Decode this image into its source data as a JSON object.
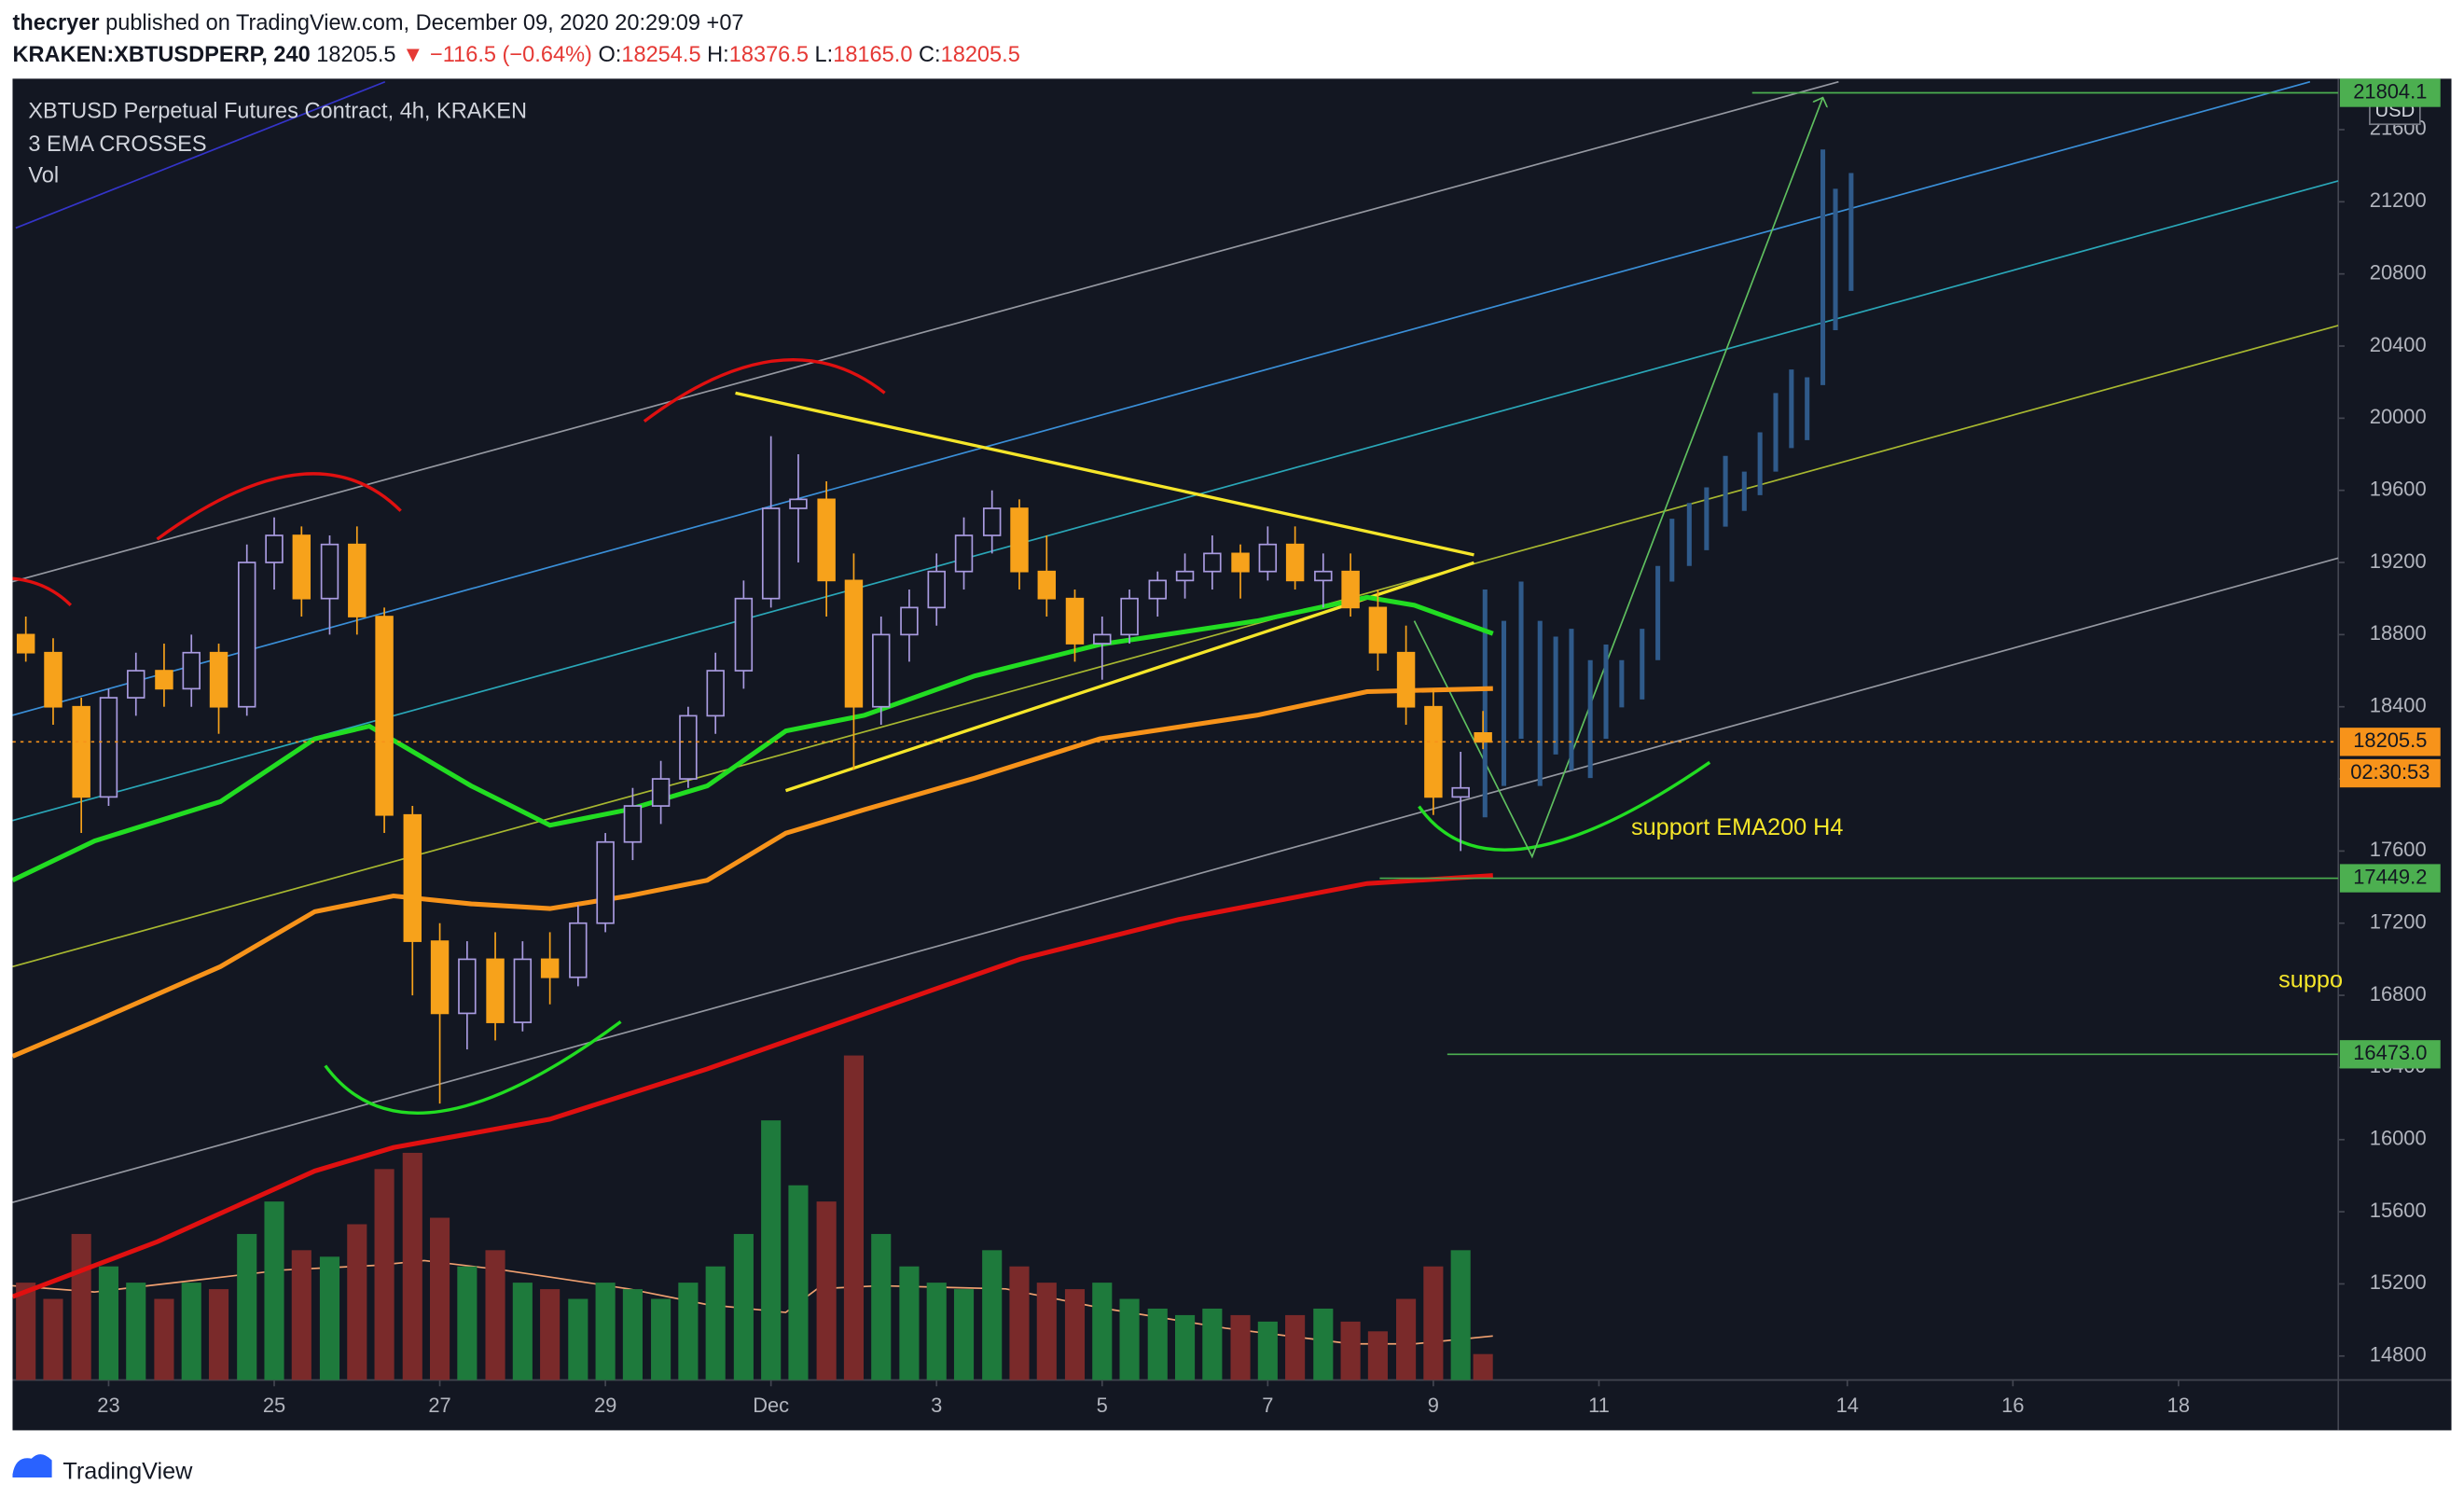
{
  "header": {
    "author": "thecryer",
    "published": "published on TradingView.com, December 09, 2020 20:29:09 +07",
    "symbol": "KRAKEN:XBTUSDPERP, 240",
    "last": "18205.5",
    "change": "▼ −116.5 (−0.64%)",
    "ohlc": [
      {
        "key": "O:",
        "value": "18254.5"
      },
      {
        "key": "H:",
        "value": "18376.5"
      },
      {
        "key": "L:",
        "value": "18165.0"
      },
      {
        "key": "C:",
        "value": "18205.5"
      }
    ],
    "legend": [
      "XBTUSD Perpetual Futures Contract, 4h, KRAKEN",
      "3 EMA CROSSES",
      "Vol"
    ]
  },
  "footer": {
    "brand": "TradingView"
  },
  "chart_data": {
    "type": "candlestick",
    "currency": "USD",
    "countdown": "02:30:53",
    "up_color": "#a99be0",
    "down_color": "#f7a21b",
    "volume_up_color": "#1e7a3c",
    "volume_down_color": "#7a2a2a",
    "grid": false,
    "xlim": [
      21.84,
      49.93
    ],
    "ylim": [
      14667,
      21865
    ],
    "y2lim": [
      0,
      400
    ],
    "xticks": [
      23,
      25,
      27,
      29,
      {
        "value": 31,
        "label": "Dec"
      },
      {
        "value": 33,
        "label": "3"
      },
      {
        "value": 35,
        "label": "5"
      },
      {
        "value": 37,
        "label": "7"
      },
      {
        "value": 39,
        "label": "9"
      },
      {
        "value": 41,
        "label": "11"
      },
      {
        "value": 44,
        "label": "14"
      },
      {
        "value": 46,
        "label": "16"
      },
      {
        "value": 48,
        "label": "18"
      }
    ],
    "yticks": [
      14800,
      15200,
      15600,
      16000,
      16400,
      16800,
      17200,
      17600,
      18000,
      18400,
      18800,
      19200,
      19600,
      20000,
      20400,
      20800,
      21200,
      21600
    ],
    "x": [
      22,
      22.33,
      22.67,
      23,
      23.33,
      23.67,
      24,
      24.33,
      24.67,
      25,
      25.33,
      25.67,
      26,
      26.33,
      26.67,
      27,
      27.33,
      27.67,
      28,
      28.33,
      28.67,
      29,
      29.33,
      29.67,
      30,
      30.33,
      30.67,
      31,
      31.33,
      31.67,
      32,
      32.33,
      32.67,
      33,
      33.33,
      33.67,
      34,
      34.33,
      34.67,
      35,
      35.33,
      35.67,
      36,
      36.33,
      36.67,
      37,
      37.33,
      37.67,
      38,
      38.33,
      38.67,
      39,
      39.33,
      39.6
    ],
    "open": [
      18800,
      18700,
      18400,
      17900,
      18450,
      18600,
      18500,
      18700,
      18400,
      19200,
      19350,
      19000,
      19300,
      18900,
      17800,
      17100,
      16700,
      17000,
      16650,
      17000,
      16900,
      17200,
      17650,
      17850,
      18000,
      18350,
      18600,
      19000,
      19500,
      19550,
      19100,
      18400,
      18800,
      18950,
      19150,
      19350,
      19500,
      19150,
      19000,
      18750,
      18800,
      19000,
      19100,
      19150,
      19250,
      19150,
      19300,
      19100,
      19150,
      18950,
      18700,
      18400,
      17900,
      18254.5
    ],
    "high": [
      18900,
      18780,
      18450,
      18500,
      18700,
      18750,
      18800,
      18750,
      19300,
      19450,
      19400,
      19350,
      19400,
      18950,
      17850,
      17200,
      17100,
      17150,
      17100,
      17150,
      17300,
      17700,
      17950,
      18100,
      18400,
      18700,
      19100,
      19900,
      19800,
      19650,
      19250,
      18900,
      19050,
      19250,
      19450,
      19600,
      19550,
      19350,
      19050,
      18900,
      19050,
      19150,
      19250,
      19350,
      19300,
      19400,
      19400,
      19250,
      19250,
      19050,
      18850,
      18500,
      18150,
      18376.5
    ],
    "low": [
      18650,
      18300,
      17700,
      17850,
      18350,
      18400,
      18400,
      18250,
      18350,
      19050,
      18900,
      18800,
      18800,
      17700,
      16800,
      16200,
      16500,
      16550,
      16600,
      16750,
      16850,
      17150,
      17550,
      17750,
      17950,
      18250,
      18500,
      18950,
      19200,
      18900,
      18050,
      18300,
      18650,
      18850,
      19050,
      19250,
      19050,
      18900,
      18650,
      18550,
      18750,
      18900,
      19000,
      19050,
      19000,
      19100,
      19050,
      18950,
      18900,
      18600,
      18300,
      17800,
      17600,
      18165
    ],
    "close": [
      18700,
      18400,
      17900,
      18450,
      18600,
      18500,
      18700,
      18400,
      19200,
      19350,
      19000,
      19300,
      18900,
      17800,
      17100,
      16700,
      17000,
      16650,
      17000,
      16900,
      17200,
      17650,
      17850,
      18000,
      18350,
      18600,
      19000,
      19500,
      19550,
      19100,
      18400,
      18800,
      18950,
      19150,
      19350,
      19500,
      19150,
      19000,
      18750,
      18800,
      19000,
      19100,
      19150,
      19250,
      19150,
      19300,
      19100,
      19150,
      18950,
      18700,
      18400,
      17900,
      17950,
      18205.5
    ],
    "volume": [
      30,
      25,
      45,
      35,
      30,
      25,
      30,
      28,
      45,
      55,
      40,
      38,
      48,
      65,
      70,
      50,
      35,
      40,
      30,
      28,
      25,
      30,
      28,
      25,
      30,
      35,
      45,
      80,
      60,
      55,
      100,
      45,
      35,
      30,
      28,
      40,
      35,
      30,
      28,
      30,
      25,
      22,
      20,
      22,
      20,
      18,
      20,
      22,
      18,
      15,
      25,
      35,
      40,
      8
    ],
    "emas": [
      {
        "color": "#22dd22",
        "x": [
          21.84,
          22.83,
          24.35,
          25.49,
          26.15,
          27.38,
          28.33,
          29.28,
          30.23,
          31.18,
          32.13,
          33.46,
          34.97,
          36.87,
          38.2,
          38.77,
          39.72
        ],
        "values": [
          17438,
          17656,
          17874,
          18222,
          18292,
          17961,
          17743,
          17830,
          17961,
          18266,
          18353,
          18571,
          18745,
          18876,
          19007,
          18963,
          18806
        ]
      },
      {
        "color": "#f7931a",
        "x": [
          21.84,
          22.83,
          24.35,
          25.49,
          26.44,
          27.38,
          28.33,
          29.28,
          30.23,
          31.18,
          32.13,
          33.46,
          34.97,
          36.87,
          38.2,
          39.72
        ],
        "values": [
          16462,
          16654,
          16959,
          17264,
          17351,
          17307,
          17281,
          17351,
          17438,
          17699,
          17830,
          18004,
          18222,
          18353,
          18484,
          18501
        ]
      },
      {
        "color": "#e01010",
        "x": [
          21.84,
          23.59,
          25.49,
          26.44,
          28.33,
          30.23,
          32.13,
          34.02,
          35.92,
          38.2,
          39.72
        ],
        "values": [
          15129,
          15434,
          15826,
          15956,
          16113,
          16392,
          16697,
          17002,
          17220,
          17420,
          17464
        ]
      }
    ],
    "price_markers": [
      {
        "value": 21804.1,
        "color": "#4caf50",
        "style": "solid"
      },
      {
        "value": 18205.5,
        "color": "#f7931a",
        "style": "dotted"
      },
      {
        "value": 17449.2,
        "color": "#4caf50",
        "style": "solid"
      },
      {
        "value": 16473.0,
        "label": "16473.0",
        "color": "#4caf50",
        "style": "solid"
      }
    ],
    "annotations": [
      "support EMA200 H4",
      "suppo"
    ]
  }
}
